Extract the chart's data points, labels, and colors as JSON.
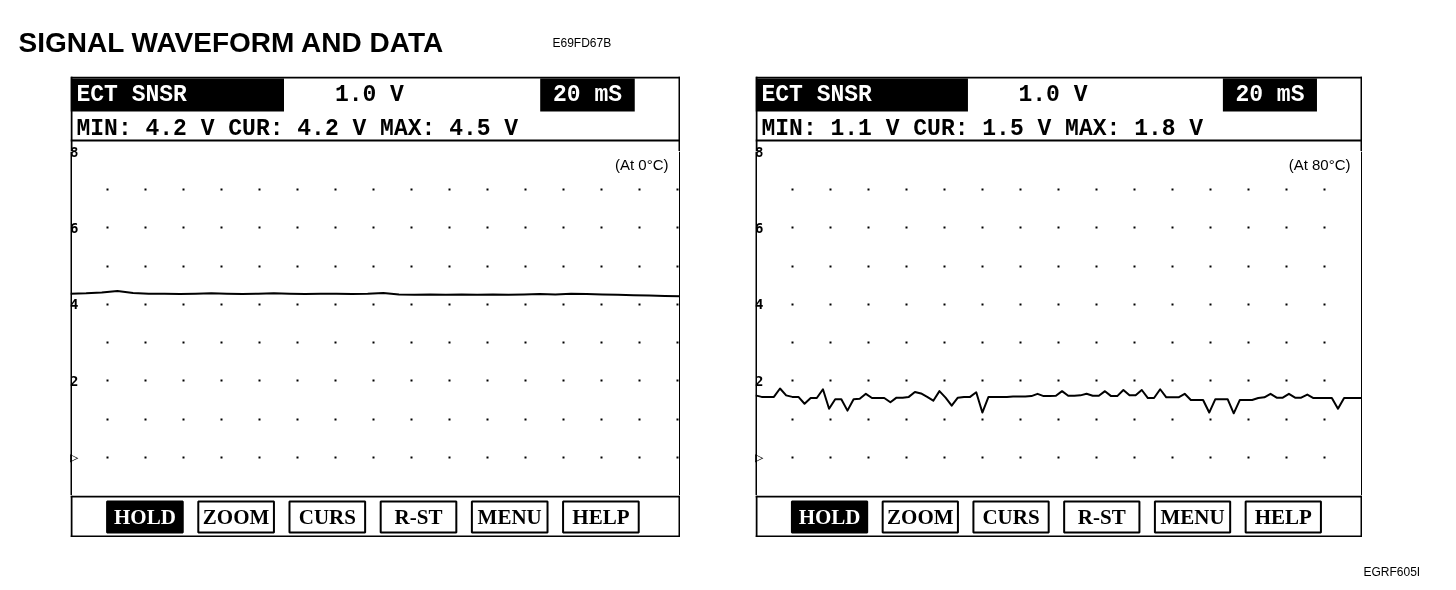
{
  "chart_data": [
    {
      "type": "line",
      "title": "ECT SNSR",
      "subtitle": "MIN: 4.2 V CUR: 4.2 V MAX: 4.5 V",
      "annotations": [
        "SIGNAL WAVEFORM AND DATA",
        "E69FD67B",
        "1.0 V",
        "20 mS",
        "(At 0°C)",
        "HOLD",
        "ZOOM",
        "CURS",
        "R-ST",
        "MENU",
        "HELP"
      ],
      "categories": [
        null,
        null,
        null,
        null,
        null,
        null,
        null,
        null,
        null,
        null,
        null,
        null,
        null,
        null,
        null,
        null,
        null,
        null,
        null,
        null,
        null,
        null,
        null,
        null,
        null,
        null,
        null,
        null,
        null,
        null,
        null,
        null,
        null,
        null,
        null,
        null,
        null,
        null,
        null,
        null
      ],
      "color": "#000000",
      "values": [
        4.28,
        4.29,
        4.31,
        4.35,
        4.3,
        4.28,
        4.28,
        4.27,
        4.28,
        4.29,
        4.28,
        4.27,
        4.28,
        4.29,
        4.28,
        4.27,
        4.28,
        4.28,
        4.27,
        4.28,
        4.3,
        4.26,
        4.25,
        4.26,
        4.25,
        4.26,
        4.25,
        4.26,
        4.25,
        4.26,
        4.27,
        4.26,
        4.28,
        4.27,
        4.26,
        4.25,
        4.24,
        4.23,
        4.22,
        4.21
      ],
      "ylim": [
        -1,
        8
      ],
      "yticks": [
        {
          "value": 0,
          "label": "▷"
        },
        {
          "value": 1,
          "label": null
        },
        2,
        {
          "value": 3,
          "label": null
        },
        4,
        {
          "value": 5,
          "label": null
        },
        6,
        {
          "value": 7,
          "label": null
        },
        8
      ],
      "grid": "y",
      "tick_labels": "y"
    },
    {
      "type": "line",
      "title": "ECT SNSR",
      "subtitle": "MIN: 1.1 V CUR: 1.5 V MAX: 1.8 V",
      "annotations": [
        "1.0 V",
        "20 mS",
        "(At 80°C)",
        "HOLD",
        "ZOOM",
        "CURS",
        "R-ST",
        "MENU",
        "HELP",
        "EGRF605I"
      ],
      "categories": [
        null,
        null,
        null,
        null,
        null,
        null,
        null,
        null,
        null,
        null,
        null,
        null,
        null,
        null,
        null,
        null,
        null,
        null,
        null,
        null,
        null,
        null,
        null,
        null,
        null,
        null,
        null,
        null,
        null,
        null,
        null,
        null,
        null,
        null,
        null,
        null,
        null,
        null,
        null,
        null,
        null,
        null,
        null,
        null,
        null,
        null,
        null,
        null,
        null,
        null,
        null,
        null,
        null,
        null,
        null,
        null,
        null,
        null,
        null,
        null,
        null,
        null,
        null,
        null,
        null,
        null,
        null,
        null,
        null,
        null,
        null,
        null,
        null,
        null,
        null,
        null,
        null,
        null,
        null,
        null,
        null,
        null,
        null,
        null,
        null,
        null,
        null,
        null,
        null,
        null,
        null,
        null,
        null,
        null,
        null,
        null,
        null,
        null,
        null,
        null
      ],
      "color": "#000000",
      "values": [
        1.62,
        1.58,
        1.58,
        1.58,
        1.8,
        1.62,
        1.58,
        1.58,
        1.4,
        1.55,
        1.55,
        1.78,
        1.27,
        1.52,
        1.52,
        1.22,
        1.52,
        1.53,
        1.66,
        1.55,
        1.55,
        1.55,
        1.44,
        1.56,
        1.56,
        1.58,
        1.71,
        1.67,
        1.58,
        1.48,
        1.73,
        1.56,
        1.35,
        1.56,
        1.58,
        1.58,
        1.7,
        1.17,
        1.58,
        1.58,
        1.58,
        1.58,
        1.59,
        1.59,
        1.59,
        1.6,
        1.66,
        1.6,
        1.6,
        1.61,
        1.73,
        1.61,
        1.61,
        1.62,
        1.66,
        1.61,
        1.61,
        1.73,
        1.6,
        1.6,
        1.76,
        1.62,
        1.62,
        1.76,
        1.55,
        1.55,
        1.78,
        1.57,
        1.57,
        1.57,
        1.66,
        1.5,
        1.5,
        1.5,
        1.17,
        1.52,
        1.52,
        1.52,
        1.15,
        1.5,
        1.5,
        1.5,
        1.55,
        1.57,
        1.66,
        1.56,
        1.56,
        1.66,
        1.56,
        1.56,
        1.64,
        1.55,
        1.55,
        1.55,
        1.55,
        1.27,
        1.55,
        1.55,
        1.55,
        1.55
      ],
      "ylim": [
        -1,
        8
      ],
      "yticks": [
        {
          "value": 0,
          "label": "▷"
        },
        {
          "value": 1,
          "label": null
        },
        2,
        {
          "value": 3,
          "label": null
        },
        4,
        {
          "value": 5,
          "label": null
        },
        6,
        {
          "value": 7,
          "label": null
        },
        8
      ],
      "grid": "y",
      "tick_labels": "y"
    }
  ]
}
